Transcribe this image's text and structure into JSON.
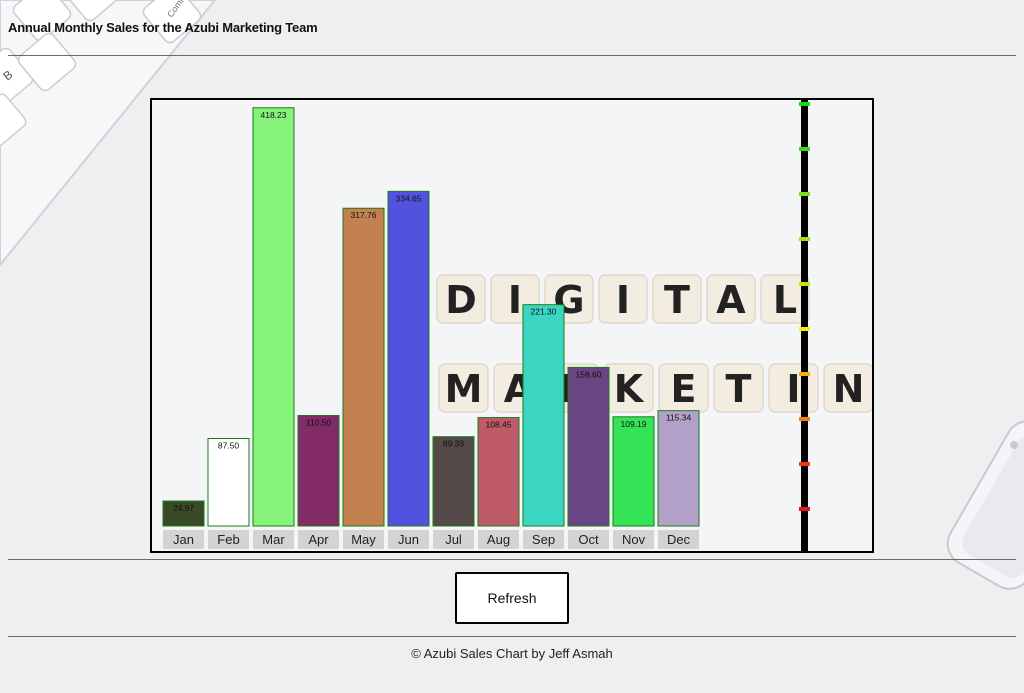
{
  "page": {
    "title": "Annual Monthly Sales for the Azubi Marketing Team",
    "refresh_label": "Refresh",
    "footer": "© Azubi Sales Chart by Jeff Asmah"
  },
  "background": {
    "word1": "DIGITAL",
    "word2": "MARKETING",
    "keyboard_key_label": "B",
    "keyboard_key_label2": "Comm"
  },
  "chart_data": {
    "type": "bar",
    "title": "Annual Monthly Sales for the Azubi Marketing Team",
    "categories": [
      "Jan",
      "Feb",
      "Mar",
      "Apr",
      "May",
      "Jun",
      "Jul",
      "Aug",
      "Sep",
      "Oct",
      "Nov",
      "Dec"
    ],
    "values": [
      24.97,
      87.5,
      418.23,
      110.5,
      317.76,
      334.65,
      89.33,
      108.45,
      221.3,
      158.6,
      109.19,
      115.34
    ],
    "value_labels": [
      "24.97",
      "87.50",
      "418.23",
      "110.50",
      "317.76",
      "334.65",
      "89.33",
      "108.45",
      "221.30",
      "158.60",
      "109.19",
      "115.34"
    ],
    "colors": [
      "#3a4a26",
      "#ffffff",
      "#86f27a",
      "#832b66",
      "#c48150",
      "#5252e0",
      "#544848",
      "#bf5a68",
      "#3ad6c2",
      "#694683",
      "#34e356",
      "#b3a0c8"
    ],
    "ylim": [
      0,
      420
    ],
    "xlabel": "",
    "ylabel": "",
    "scale_marker_colors": [
      "#18d818",
      "#3ad828",
      "#7ae01e",
      "#a8e018",
      "#cce010",
      "#eeee10",
      "#f2b010",
      "#f08010",
      "#e84010",
      "#e01818"
    ]
  }
}
